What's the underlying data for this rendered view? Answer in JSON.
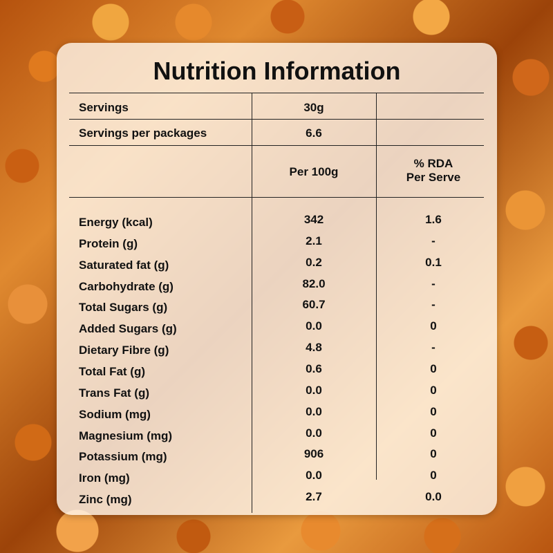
{
  "title": "Nutrition Information",
  "header": {
    "servings_label": "Servings",
    "servings_value": "30g",
    "packages_label": "Servings per packages",
    "packages_value": "6.6",
    "per100_label": "Per 100g",
    "rda_label_line1": "% RDA",
    "rda_label_line2": "Per Serve"
  },
  "rows": [
    {
      "label": "Energy (kcal)",
      "per100": "342",
      "rda": "1.6"
    },
    {
      "label": "Protein (g)",
      "per100": "2.1",
      "rda": "-"
    },
    {
      "label": "Saturated fat (g)",
      "per100": "0.2",
      "rda": "0.1"
    },
    {
      "label": "Carbohydrate (g)",
      "per100": "82.0",
      "rda": "-"
    },
    {
      "label": "Total Sugars (g)",
      "per100": "60.7",
      "rda": "-"
    },
    {
      "label": "Added Sugars (g)",
      "per100": "0.0",
      "rda": "0"
    },
    {
      "label": "Dietary Fibre (g)",
      "per100": "4.8",
      "rda": "-"
    },
    {
      "label": "Total Fat (g)",
      "per100": "0.6",
      "rda": "0"
    },
    {
      "label": "Trans Fat (g)",
      "per100": "0.0",
      "rda": "0"
    },
    {
      "label": "Sodium (mg)",
      "per100": "0.0",
      "rda": "0"
    },
    {
      "label": "Magnesium (mg)",
      "per100": "0.0",
      "rda": "0"
    },
    {
      "label": "Potassium (mg)",
      "per100": "906",
      "rda": "0"
    },
    {
      "label": "Iron (mg)",
      "per100": "0.0",
      "rda": "0"
    },
    {
      "label": "Zinc (mg)",
      "per100": "2.7",
      "rda": "0.0"
    }
  ]
}
